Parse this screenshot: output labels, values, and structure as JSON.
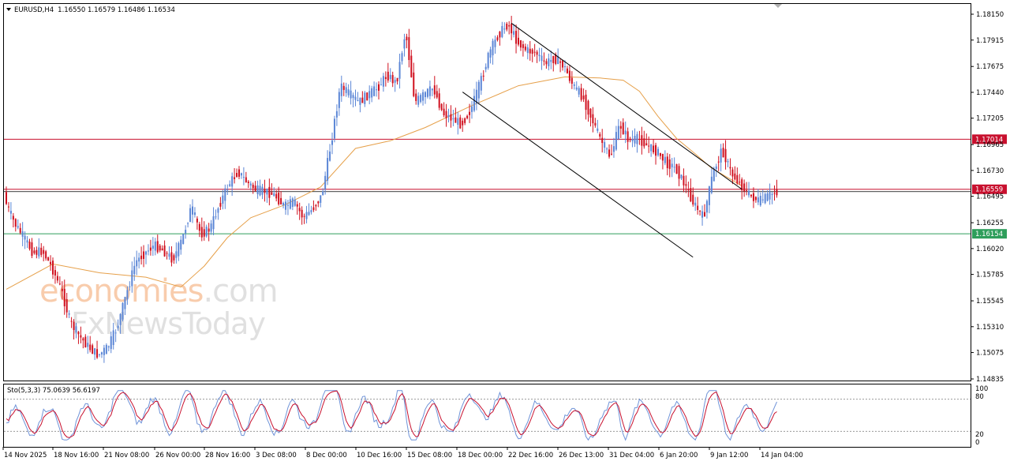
{
  "header": {
    "symbol": "EURUSD,H4",
    "ohlc": "1.16550 1.16579 1.16486 1.16534"
  },
  "watermark": {
    "line1_part1": "economies",
    "line1_part2": ".com",
    "line2_part1": "FxNews",
    "line2_part2": "Today"
  },
  "stochastic": {
    "label": "Sto(5,3,3) 75.0639 56.6197",
    "levels": [
      "100",
      "80",
      "20",
      "0"
    ]
  },
  "colors": {
    "bull": "#5b86d6",
    "bear": "#d0101f",
    "ma": "#e6a04a",
    "resistance": "#c8102e",
    "support": "#2e9e5b",
    "stoch_main": "#6f93d8",
    "stoch_signal": "#c8102e"
  },
  "chart_data": {
    "type": "candlestick",
    "title": "EURUSD,H4",
    "x_tick_labels": [
      "14 Nov 2025",
      "18 Nov 16:00",
      "21 Nov 08:00",
      "26 Nov 00:00",
      "28 Nov 16:00",
      "3 Dec 08:00",
      "8 Dec 00:00",
      "10 Dec 16:00",
      "15 Dec 08:00",
      "18 Dec 00:00",
      "22 Dec 16:00",
      "26 Dec 13:00",
      "31 Dec 04:00",
      "6 Jan 20:00",
      "9 Jan 12:00",
      "14 Jan 04:00"
    ],
    "y_tick_labels": [
      "1.18150",
      "1.17915",
      "1.17675",
      "1.17440",
      "1.17205",
      "1.16965",
      "1.16730",
      "1.16495",
      "1.16255",
      "1.16020",
      "1.15785",
      "1.15545",
      "1.15310",
      "1.15075",
      "1.14835"
    ],
    "ylim": [
      1.14835,
      1.1815
    ],
    "price_levels": [
      {
        "label": "1.17014",
        "value": 1.17014,
        "role": "resistance"
      },
      {
        "label": "1.16559",
        "value": 1.16559,
        "role": "current price"
      },
      {
        "label": "1.16154",
        "value": 1.16154,
        "role": "support"
      }
    ],
    "anchors": [
      [
        0,
        1.1645
      ],
      [
        4,
        1.1625
      ],
      [
        8,
        1.1612
      ],
      [
        12,
        1.1598
      ],
      [
        16,
        1.16
      ],
      [
        20,
        1.1585
      ],
      [
        24,
        1.1565
      ],
      [
        28,
        1.1535
      ],
      [
        32,
        1.1522
      ],
      [
        36,
        1.1512
      ],
      [
        40,
        1.1505
      ],
      [
        44,
        1.1512
      ],
      [
        48,
        1.153
      ],
      [
        52,
        1.156
      ],
      [
        56,
        1.159
      ],
      [
        60,
        1.1598
      ],
      [
        64,
        1.1605
      ],
      [
        68,
        1.16
      ],
      [
        72,
        1.1592
      ],
      [
        76,
        1.161
      ],
      [
        80,
        1.164
      ],
      [
        84,
        1.1615
      ],
      [
        88,
        1.162
      ],
      [
        92,
        1.1642
      ],
      [
        96,
        1.166
      ],
      [
        100,
        1.1672
      ],
      [
        104,
        1.1662
      ],
      [
        108,
        1.1655
      ],
      [
        112,
        1.1654
      ],
      [
        116,
        1.165
      ],
      [
        120,
        1.164
      ],
      [
        124,
        1.1645
      ],
      [
        128,
        1.163
      ],
      [
        132,
        1.1638
      ],
      [
        136,
        1.165
      ],
      [
        140,
        1.1698
      ],
      [
        144,
        1.175
      ],
      [
        148,
        1.1742
      ],
      [
        152,
        1.1735
      ],
      [
        156,
        1.1742
      ],
      [
        160,
        1.1748
      ],
      [
        164,
        1.176
      ],
      [
        168,
        1.1752
      ],
      [
        172,
        1.18
      ],
      [
        176,
        1.1735
      ],
      [
        180,
        1.1742
      ],
      [
        184,
        1.1748
      ],
      [
        188,
        1.1725
      ],
      [
        192,
        1.172
      ],
      [
        196,
        1.1715
      ],
      [
        200,
        1.1728
      ],
      [
        204,
        1.1752
      ],
      [
        208,
        1.178
      ],
      [
        212,
        1.1797
      ],
      [
        216,
        1.1806
      ],
      [
        220,
        1.179
      ],
      [
        224,
        1.1782
      ],
      [
        228,
        1.178
      ],
      [
        232,
        1.177
      ],
      [
        236,
        1.1775
      ],
      [
        240,
        1.1768
      ],
      [
        244,
        1.175
      ],
      [
        248,
        1.174
      ],
      [
        252,
        1.172
      ],
      [
        256,
        1.17
      ],
      [
        260,
        1.1685
      ],
      [
        264,
        1.1715
      ],
      [
        268,
        1.17
      ],
      [
        272,
        1.1702
      ],
      [
        276,
        1.1695
      ],
      [
        280,
        1.169
      ],
      [
        284,
        1.168
      ],
      [
        288,
        1.1675
      ],
      [
        292,
        1.166
      ],
      [
        296,
        1.1642
      ],
      [
        300,
        1.163
      ],
      [
        304,
        1.167
      ],
      [
        308,
        1.1692
      ],
      [
        312,
        1.167
      ],
      [
        316,
        1.166
      ],
      [
        320,
        1.165
      ],
      [
        324,
        1.1645
      ],
      [
        328,
        1.165
      ],
      [
        331,
        1.16534
      ]
    ],
    "moving_average": [
      [
        0,
        1.1565
      ],
      [
        20,
        1.1588
      ],
      [
        40,
        1.158
      ],
      [
        60,
        1.1576
      ],
      [
        75,
        1.1567
      ],
      [
        85,
        1.1586
      ],
      [
        95,
        1.1612
      ],
      [
        105,
        1.163
      ],
      [
        120,
        1.1642
      ],
      [
        135,
        1.1658
      ],
      [
        150,
        1.1693
      ],
      [
        165,
        1.17
      ],
      [
        180,
        1.1712
      ],
      [
        200,
        1.1732
      ],
      [
        220,
        1.175
      ],
      [
        240,
        1.1758
      ],
      [
        255,
        1.1757
      ],
      [
        265,
        1.1755
      ],
      [
        272,
        1.1745
      ],
      [
        280,
        1.1722
      ],
      [
        288,
        1.1702
      ],
      [
        296,
        1.1688
      ],
      [
        303,
        1.1675
      ],
      [
        316,
        1.1659
      ]
    ],
    "channel_upper": [
      [
        217,
        1.18068
      ],
      [
        316,
        1.16559
      ]
    ],
    "channel_lower": [
      [
        196,
        1.17443
      ],
      [
        295,
        1.15942
      ]
    ],
    "stochastic": {
      "name": "Sto(5,3,3)",
      "main": 75.0639,
      "signal": 56.6197,
      "ylim": [
        0,
        100
      ],
      "levels": [
        80,
        20
      ]
    }
  }
}
